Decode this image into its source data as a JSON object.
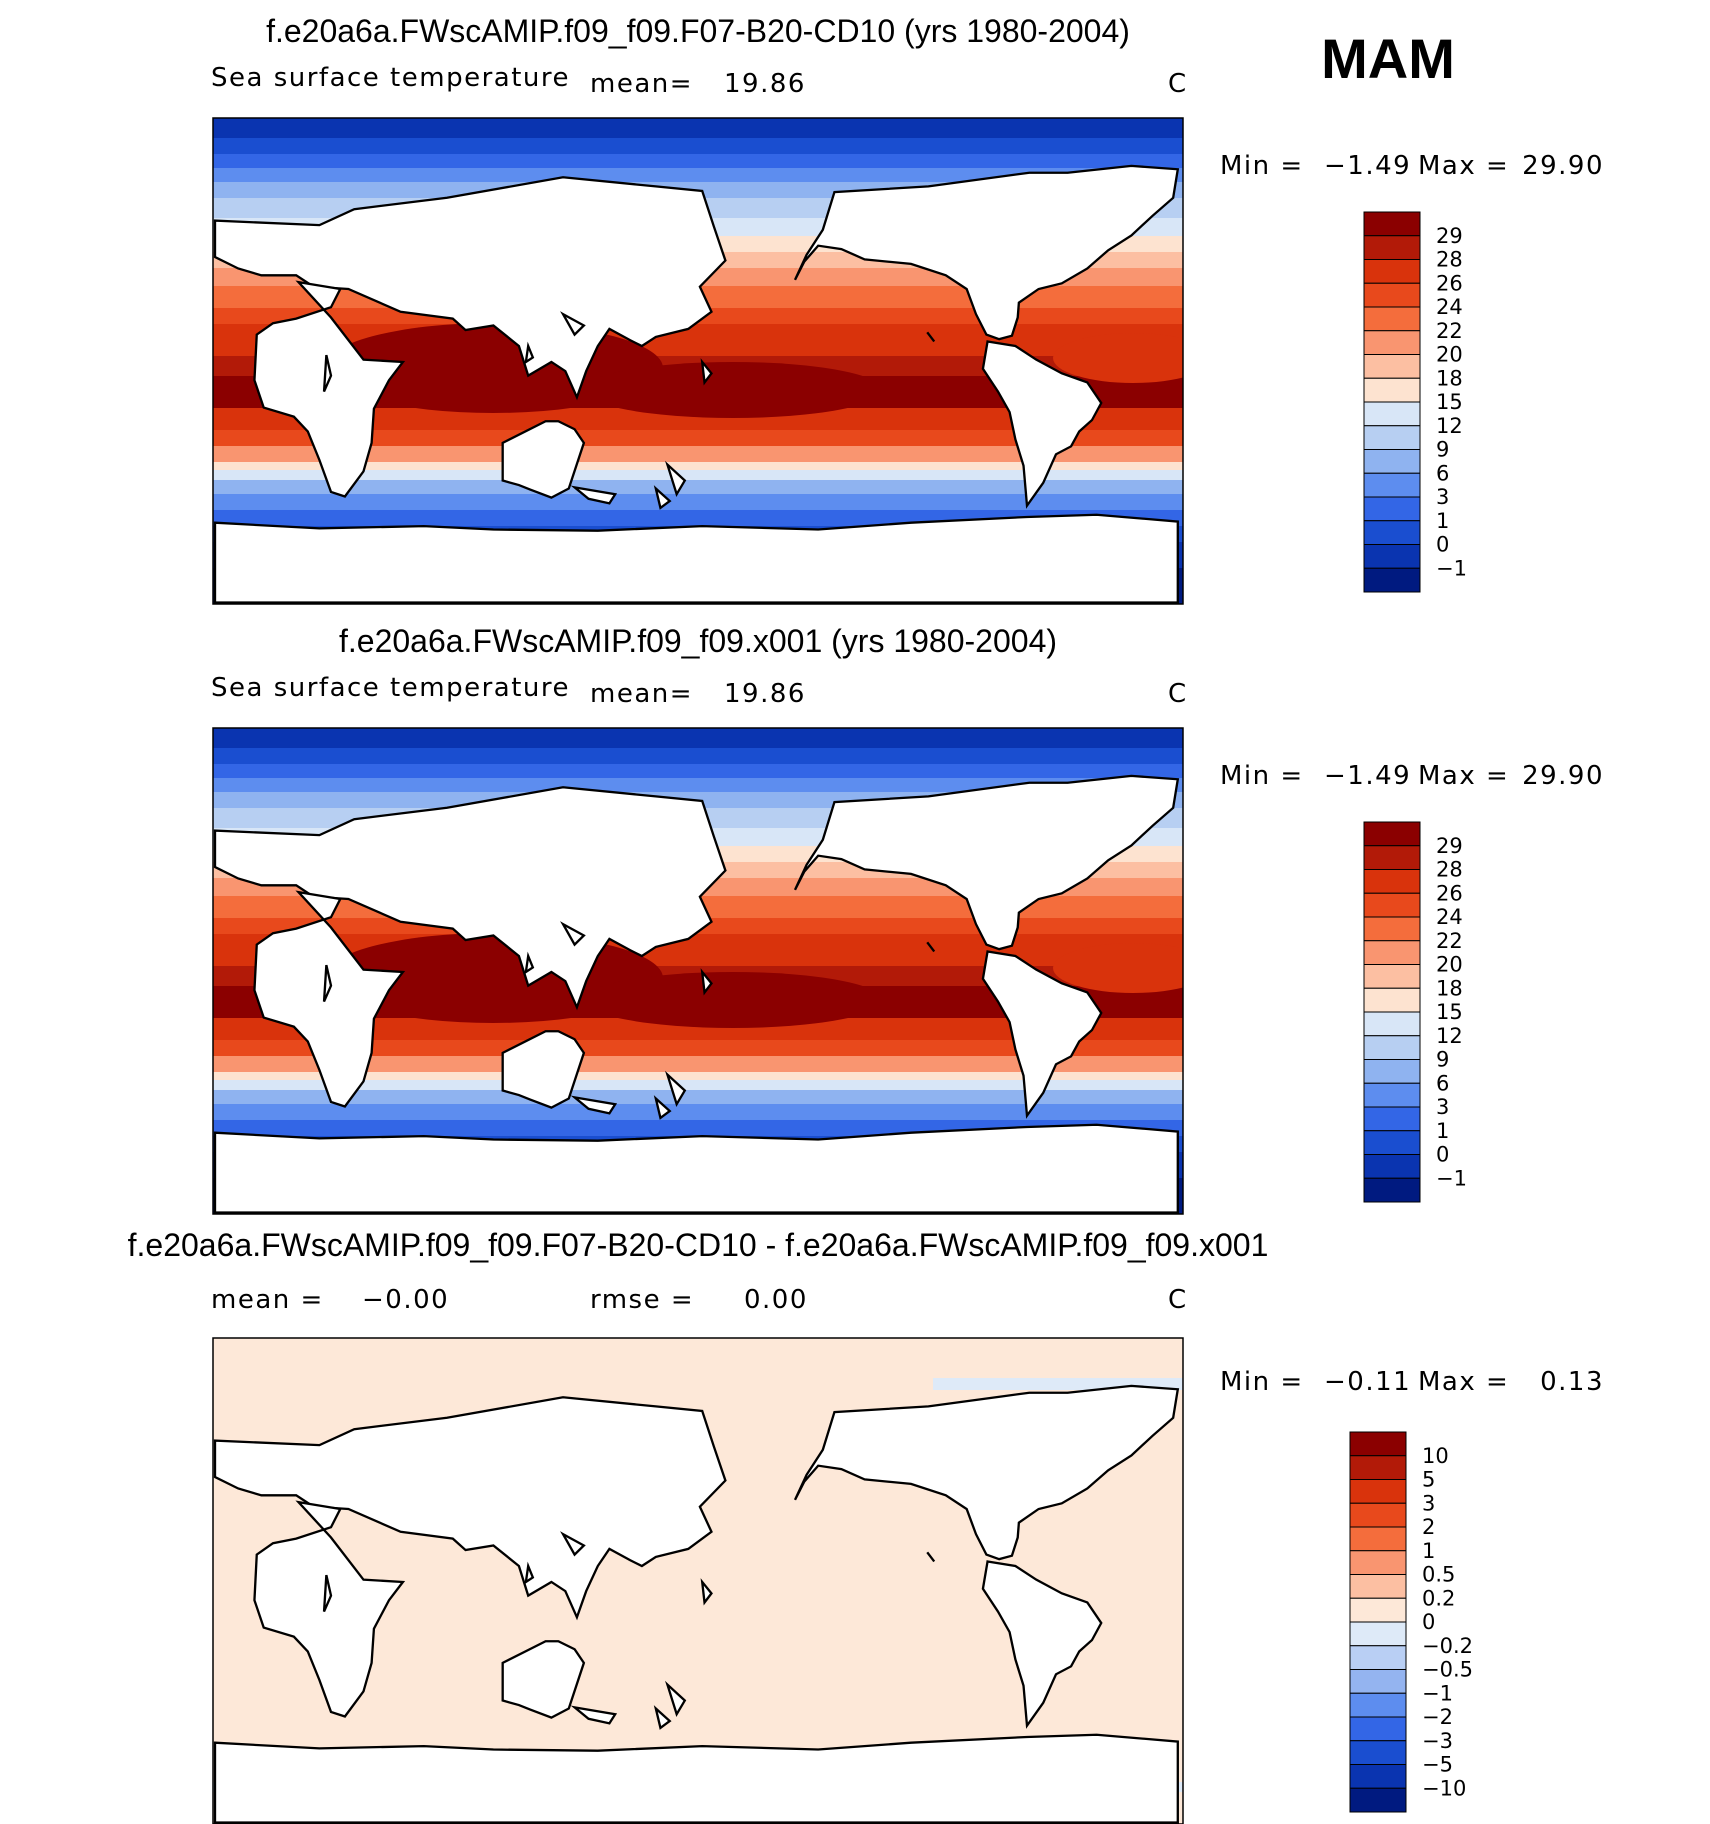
{
  "season": "MAM",
  "chart_data": [
    {
      "type": "heatmap",
      "title": "f.e20a6a.FWscAMIP.f09_f09.F07-B20-CD10 (yrs 1980-2004)",
      "variable": "Sea surface temperature",
      "stat_left": "mean=",
      "stat_value": "19.86",
      "units": "C",
      "min_label": "Min =",
      "min_value": "−1.49",
      "max_label": "Max =",
      "max_value": "29.90",
      "field": "sst",
      "colorbar": {
        "labels": [
          "29",
          "28",
          "26",
          "24",
          "22",
          "20",
          "18",
          "15",
          "12",
          "9",
          "6",
          "3",
          "1",
          "0",
          "−1"
        ],
        "colors": [
          "#8b0000",
          "#b21a08",
          "#d9330c",
          "#e8491c",
          "#f46d3c",
          "#f99570",
          "#fcbfa2",
          "#fde3d0",
          "#d8e6f7",
          "#b7cff2",
          "#8fb3f0",
          "#5d8def",
          "#3366e6",
          "#1a4ed0",
          "#0a34b0",
          "#001a80"
        ]
      }
    },
    {
      "type": "heatmap",
      "title": "f.e20a6a.FWscAMIP.f09_f09.x001 (yrs 1980-2004)",
      "variable": "Sea surface temperature",
      "stat_left": "mean=",
      "stat_value": "19.86",
      "units": "C",
      "min_label": "Min =",
      "min_value": "−1.49",
      "max_label": "Max =",
      "max_value": "29.90",
      "field": "sst",
      "colorbar": {
        "labels": [
          "29",
          "28",
          "26",
          "24",
          "22",
          "20",
          "18",
          "15",
          "12",
          "9",
          "6",
          "3",
          "1",
          "0",
          "−1"
        ],
        "colors": [
          "#8b0000",
          "#b21a08",
          "#d9330c",
          "#e8491c",
          "#f46d3c",
          "#f99570",
          "#fcbfa2",
          "#fde3d0",
          "#d8e6f7",
          "#b7cff2",
          "#8fb3f0",
          "#5d8def",
          "#3366e6",
          "#1a4ed0",
          "#0a34b0",
          "#001a80"
        ]
      }
    },
    {
      "type": "heatmap",
      "title": "f.e20a6a.FWscAMIP.f09_f09.F07-B20-CD10 - f.e20a6a.FWscAMIP.f09_f09.x001",
      "variable": "",
      "stat_left": "mean =",
      "stat_value": "−0.00",
      "stat2_label": "rmse =",
      "stat2_value": "0.00",
      "units": "C",
      "min_label": "Min =",
      "min_value": "−0.11",
      "max_label": "Max =",
      "max_value": "0.13",
      "field": "diff",
      "colorbar": {
        "labels": [
          "10",
          "5",
          "3",
          "2",
          "1",
          "0.5",
          "0.2",
          "0",
          "−0.2",
          "−0.5",
          "−1",
          "−2",
          "−3",
          "−5",
          "−10"
        ],
        "colors": [
          "#8b0000",
          "#b21a08",
          "#d9330c",
          "#e8491c",
          "#f46d3c",
          "#f99570",
          "#fcbfa2",
          "#fde8d8",
          "#deeaf8",
          "#b9cff4",
          "#94b4f0",
          "#5d8def",
          "#3366e6",
          "#1a4ed0",
          "#0a34b0",
          "#001a80"
        ]
      }
    }
  ]
}
